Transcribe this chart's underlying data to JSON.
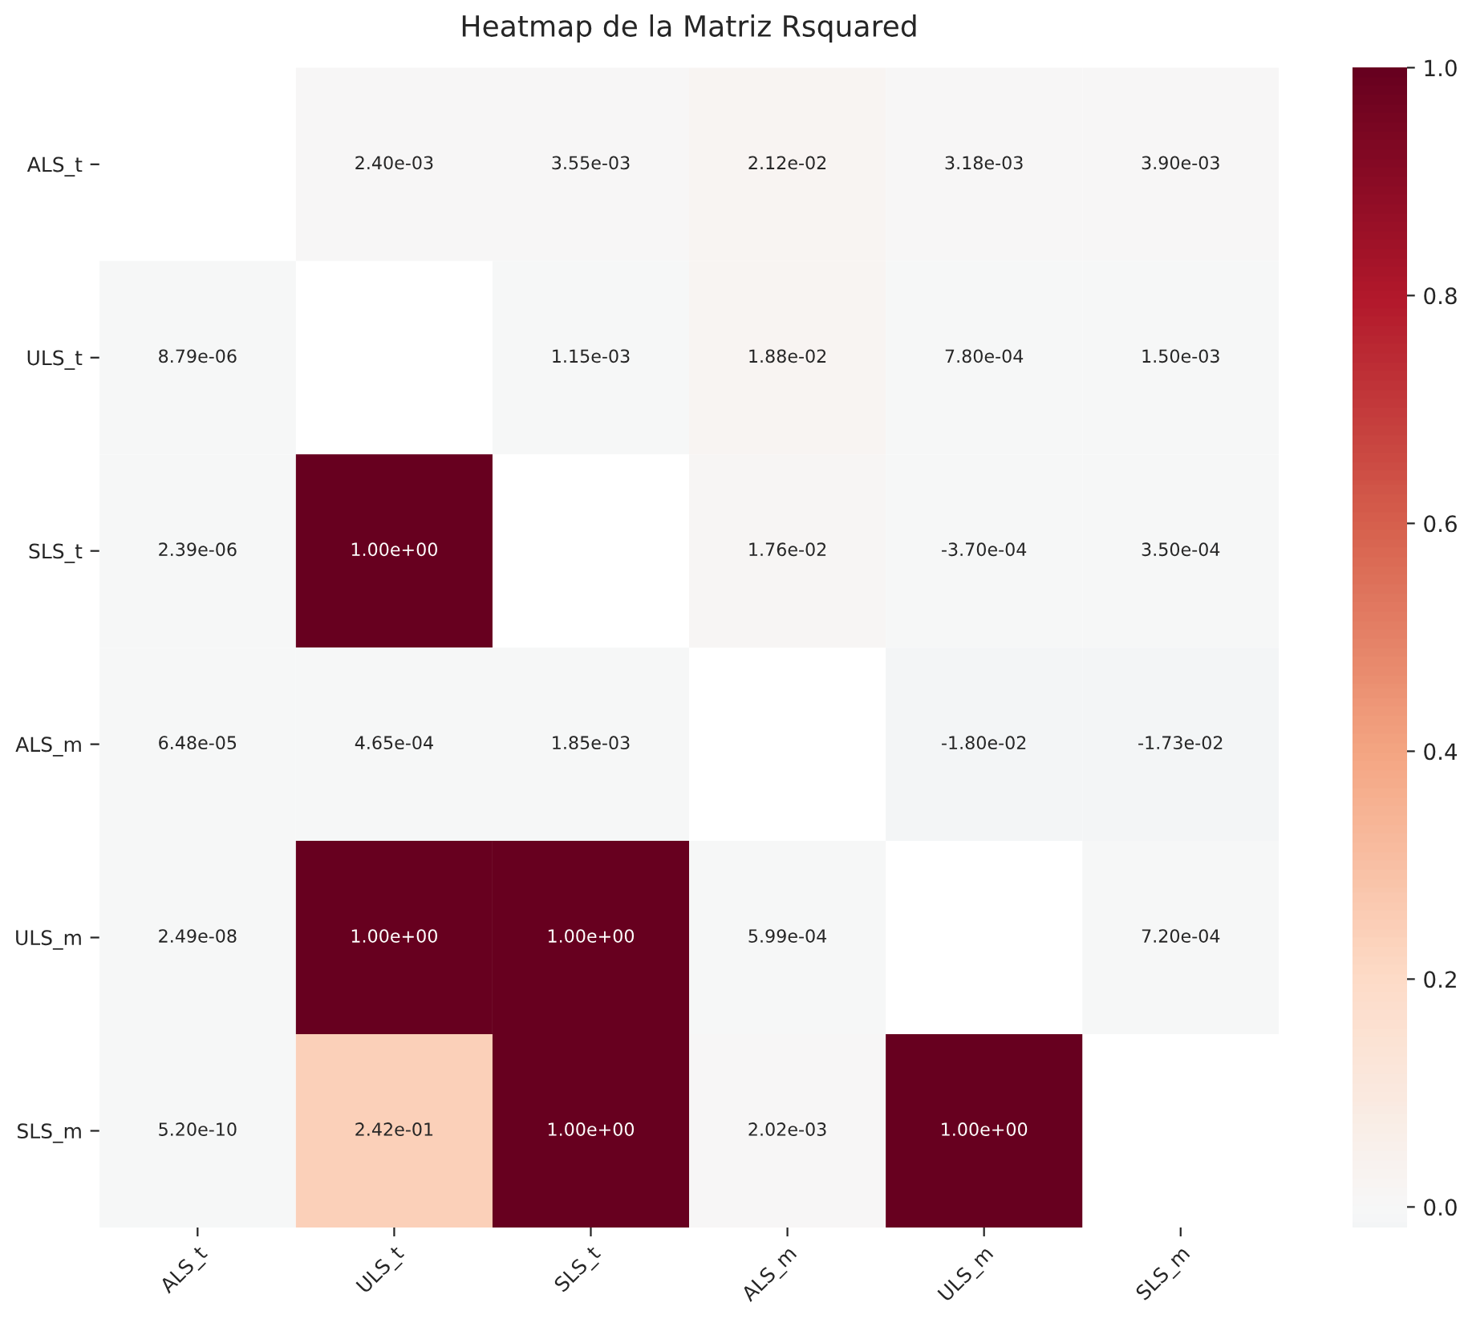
{
  "chart_data": {
    "type": "heatmap",
    "title": "Heatmap de la Matriz Rsquared",
    "categories": [
      "ALS_t",
      "ULS_t",
      "SLS_t",
      "ALS_m",
      "ULS_m",
      "SLS_m"
    ],
    "y_categories": [
      "ALS_t",
      "ULS_t",
      "SLS_t",
      "ALS_m",
      "ULS_m",
      "SLS_m"
    ],
    "cells": [
      [
        null,
        0.0024,
        0.00355,
        0.0212,
        0.00318,
        0.0039
      ],
      [
        8.79e-06,
        null,
        0.00115,
        0.0188,
        0.00078,
        0.0015
      ],
      [
        2.39e-06,
        1.0,
        null,
        0.0176,
        -0.00037,
        0.00035
      ],
      [
        6.48e-05,
        0.000465,
        0.00185,
        null,
        -0.018,
        -0.0173
      ],
      [
        2.49e-08,
        1.0,
        1.0,
        0.000599,
        null,
        0.00072
      ],
      [
        5.2e-10,
        0.242,
        1.0,
        0.00202,
        1.0,
        null
      ]
    ],
    "cell_labels": [
      [
        null,
        "2.40e-03",
        "3.55e-03",
        "2.12e-02",
        "3.18e-03",
        "3.90e-03"
      ],
      [
        "8.79e-06",
        null,
        "1.15e-03",
        "1.88e-02",
        "7.80e-04",
        "1.50e-03"
      ],
      [
        "2.39e-06",
        "1.00e+00",
        null,
        "1.76e-02",
        "-3.70e-04",
        "3.50e-04"
      ],
      [
        "6.48e-05",
        "4.65e-04",
        "1.85e-03",
        null,
        "-1.80e-02",
        "-1.73e-02"
      ],
      [
        "2.49e-08",
        "1.00e+00",
        "1.00e+00",
        "5.99e-04",
        null,
        "7.20e-04"
      ],
      [
        "5.20e-10",
        "2.42e-01",
        "1.00e+00",
        "2.02e-03",
        "1.00e+00",
        null
      ]
    ],
    "clim": [
      -0.018,
      1.0
    ],
    "cticks": [
      {
        "value": 0,
        "label": "0.0"
      },
      {
        "value": 0.2,
        "label": "0.2"
      },
      {
        "value": 0.4,
        "label": "0.4"
      },
      {
        "value": 0.6,
        "label": "0.6"
      },
      {
        "value": 0.8,
        "label": "0.8"
      },
      {
        "value": 1.0,
        "label": "1.0"
      }
    ]
  }
}
